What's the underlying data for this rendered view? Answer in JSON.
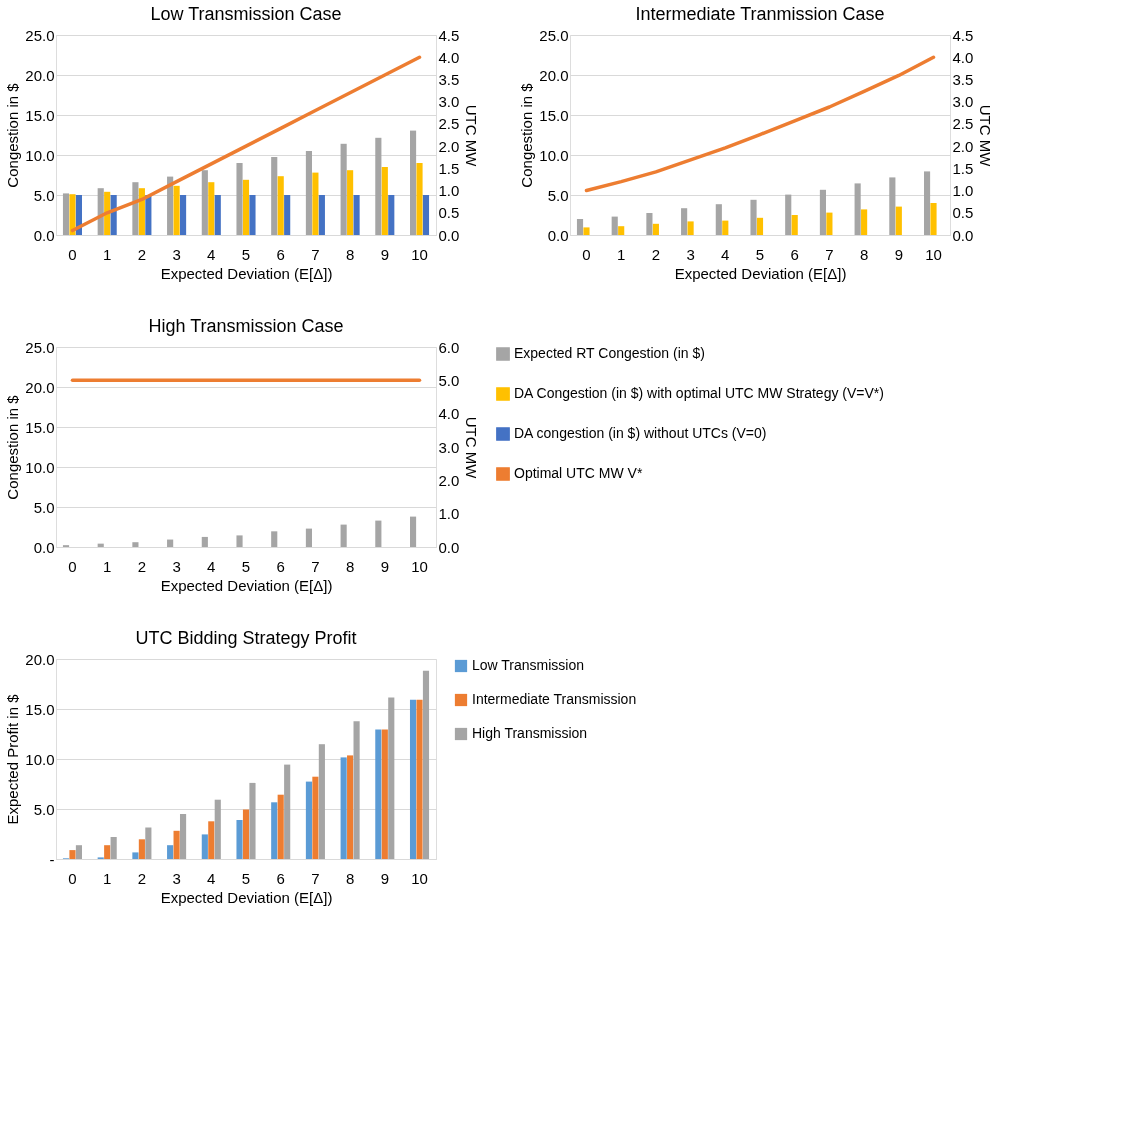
{
  "chart_data": [
    {
      "type": "bar",
      "title": "Low Transmission Case",
      "xlabel": "Expected Deviation (E[Δ])",
      "ylabel": "Congestion in $",
      "y2label": "UTC MW",
      "categories": [
        "0",
        "1",
        "2",
        "3",
        "4",
        "5",
        "6",
        "7",
        "8",
        "9",
        "10"
      ],
      "series": [
        {
          "color": "#a5a5a5",
          "values": [
            5.2,
            5.85,
            6.6,
            7.3,
            8.1,
            9.0,
            9.75,
            10.5,
            11.4,
            12.15,
            13.05
          ]
        },
        {
          "color": "#ffc000",
          "values": [
            5.1,
            5.4,
            5.85,
            6.15,
            6.6,
            6.9,
            7.35,
            7.8,
            8.1,
            8.5,
            9.0
          ]
        },
        {
          "color": "#4472c4",
          "values": [
            5.0,
            5.0,
            5.0,
            5.0,
            5.0,
            5.0,
            5.0,
            5.0,
            5.0,
            5.0,
            5.0
          ]
        },
        {
          "type": "line",
          "axis": "y2",
          "color": "#ed7d31",
          "values": [
            0.1,
            0.5,
            0.8,
            1.2,
            1.6,
            2.0,
            2.4,
            2.8,
            3.2,
            3.6,
            4.0
          ]
        }
      ],
      "ylim": [
        0,
        25
      ],
      "yticks": [
        {
          "value": 0,
          "label": "0.0"
        },
        {
          "value": 5,
          "label": "5.0"
        },
        {
          "value": 10,
          "label": "10.0"
        },
        {
          "value": 15,
          "label": "15.0"
        },
        {
          "value": 20,
          "label": "20.0"
        },
        {
          "value": 25,
          "label": "25.0"
        }
      ],
      "y2lim": [
        0,
        4.5
      ],
      "y2ticks": [
        {
          "value": 0,
          "label": "0.0"
        },
        0.5,
        {
          "value": 1,
          "label": "1.0"
        },
        1.5,
        {
          "value": 2,
          "label": "2.0"
        },
        2.5,
        {
          "value": 3,
          "label": "3.0"
        },
        3.5,
        {
          "value": 4,
          "label": "4.0"
        },
        4.5
      ],
      "grid": "y"
    },
    {
      "type": "bar",
      "title": "Intermediate Tranmission Case",
      "xlabel": "Expected Deviation (E[Δ])",
      "ylabel": "Congestion in $",
      "y2label": "UTC MW",
      "categories": [
        "0",
        "1",
        "2",
        "3",
        "4",
        "5",
        "6",
        "7",
        "8",
        "9",
        "10"
      ],
      "series": [
        {
          "color": "#a5a5a5",
          "values": [
            2.0,
            2.3,
            2.75,
            3.35,
            3.85,
            4.4,
            5.05,
            5.65,
            6.45,
            7.2,
            7.95
          ]
        },
        {
          "color": "#ffc000",
          "values": [
            0.95,
            1.1,
            1.4,
            1.7,
            1.8,
            2.15,
            2.5,
            2.8,
            3.2,
            3.55,
            4.0
          ]
        },
        {
          "type": "line",
          "axis": "y2",
          "color": "#ed7d31",
          "values": [
            1.0,
            1.2,
            1.42,
            1.69,
            1.96,
            2.26,
            2.57,
            2.88,
            3.23,
            3.59,
            4.0
          ]
        }
      ],
      "ylim": [
        0,
        25
      ],
      "yticks": [
        {
          "value": 0,
          "label": "0.0"
        },
        {
          "value": 5,
          "label": "5.0"
        },
        {
          "value": 10,
          "label": "10.0"
        },
        {
          "value": 15,
          "label": "15.0"
        },
        {
          "value": 20,
          "label": "20.0"
        },
        {
          "value": 25,
          "label": "25.0"
        }
      ],
      "y2lim": [
        0,
        4.5
      ],
      "y2ticks": [
        {
          "value": 0,
          "label": "0.0"
        },
        0.5,
        {
          "value": 1,
          "label": "1.0"
        },
        1.5,
        {
          "value": 2,
          "label": "2.0"
        },
        2.5,
        {
          "value": 3,
          "label": "3.0"
        },
        3.5,
        {
          "value": 4,
          "label": "4.0"
        },
        4.5
      ],
      "grid": "y"
    },
    {
      "type": "bar",
      "title": "High Transmission Case",
      "xlabel": "Expected Deviation (E[Δ])",
      "ylabel": "Congestion in $",
      "y2label": "UTC MW",
      "categories": [
        "0",
        "1",
        "2",
        "3",
        "4",
        "5",
        "6",
        "7",
        "8",
        "9",
        "10"
      ],
      "series": [
        {
          "name": "Expected RT Congestion (in $)",
          "color": "#a5a5a5",
          "values": [
            0.23,
            0.42,
            0.6,
            0.93,
            1.26,
            1.45,
            1.96,
            2.3,
            2.8,
            3.3,
            3.8
          ]
        },
        {
          "name": "DA Congestion (in $) with optimal UTC MW Strategy (V=V*)",
          "color": "#ffc000",
          "values": [
            null,
            null,
            null,
            null,
            null,
            null,
            null,
            null,
            null,
            null,
            null
          ]
        },
        {
          "name": "DA congestion (in $) without UTCs (V=0)",
          "color": "#4472c4",
          "values": [
            null,
            null,
            null,
            null,
            null,
            null,
            null,
            null,
            null,
            null,
            null
          ]
        },
        {
          "name": "Optimal UTC MW V*",
          "type": "line",
          "axis": "y2",
          "color": "#ed7d31",
          "values": [
            5.0,
            5.0,
            5.0,
            5.0,
            5.0,
            5.0,
            5.0,
            5.0,
            5.0,
            5.0,
            5.0
          ]
        }
      ],
      "ylim": [
        0,
        25
      ],
      "yticks": [
        {
          "value": 0,
          "label": "0.0"
        },
        {
          "value": 5,
          "label": "5.0"
        },
        {
          "value": 10,
          "label": "10.0"
        },
        {
          "value": 15,
          "label": "15.0"
        },
        {
          "value": 20,
          "label": "20.0"
        },
        {
          "value": 25,
          "label": "25.0"
        }
      ],
      "y2lim": [
        0,
        6
      ],
      "y2ticks": [
        {
          "value": 0,
          "label": "0.0"
        },
        {
          "value": 1,
          "label": "1.0"
        },
        {
          "value": 2,
          "label": "2.0"
        },
        {
          "value": 3,
          "label": "3.0"
        },
        {
          "value": 4,
          "label": "4.0"
        },
        {
          "value": 5,
          "label": "5.0"
        },
        {
          "value": 6,
          "label": "6.0"
        }
      ],
      "grid": "y",
      "legend": "right"
    },
    {
      "type": "bar",
      "title": "UTC Bidding Strategy Profit",
      "xlabel": "Expected Deviation (E[Δ])",
      "ylabel": "Expected Profit in $",
      "categories": [
        "0",
        "1",
        "2",
        "3",
        "4",
        "5",
        "6",
        "7",
        "8",
        "9",
        "10"
      ],
      "series": [
        {
          "name": "Low Transmission",
          "color": "#5b9bd5",
          "values": [
            0.07,
            0.16,
            0.66,
            1.38,
            2.46,
            3.9,
            5.67,
            7.74,
            10.16,
            12.95,
            15.93
          ]
        },
        {
          "name": "Intermediate Transmission",
          "color": "#ed7d31",
          "values": [
            0.89,
            1.38,
            1.97,
            2.82,
            3.77,
            4.95,
            6.43,
            8.23,
            10.36,
            12.95,
            15.93
          ]
        },
        {
          "name": "High Transmission",
          "color": "#a5a5a5",
          "values": [
            1.38,
            2.2,
            3.15,
            4.49,
            5.93,
            7.61,
            9.44,
            11.48,
            13.77,
            16.16,
            18.82
          ]
        }
      ],
      "ylim": [
        0,
        20
      ],
      "yticks": [
        {
          "value": 0,
          "label": "-"
        },
        {
          "value": 5,
          "label": "5.0"
        },
        {
          "value": 10,
          "label": "10.0"
        },
        {
          "value": 15,
          "label": "15.0"
        },
        {
          "value": 20,
          "label": "20.0"
        }
      ],
      "grid": "y",
      "legend": "right"
    }
  ]
}
